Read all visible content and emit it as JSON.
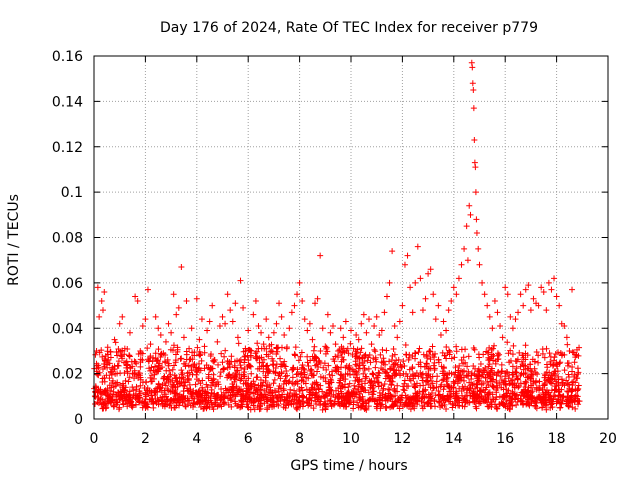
{
  "chart_data": {
    "type": "scatter",
    "title": "Day 176 of 2024, Rate Of TEC Index for receiver p779",
    "xlabel": "GPS time / hours",
    "ylabel": "ROTI / TECUs",
    "xlim": [
      0,
      20
    ],
    "ylim": [
      0,
      0.16
    ],
    "x_ticks": [
      0,
      2,
      4,
      6,
      8,
      10,
      12,
      14,
      16,
      18,
      20
    ],
    "x_tick_labels": [
      "0",
      "2",
      "4",
      "6",
      "8",
      "10",
      "12",
      "14",
      "16",
      "18",
      "20"
    ],
    "y_ticks": [
      0,
      0.02,
      0.04,
      0.06,
      0.08,
      0.1,
      0.12,
      0.14,
      0.16
    ],
    "y_tick_labels": [
      "0",
      "0.02",
      "0.04",
      "0.06",
      "0.08",
      "0.1",
      "0.12",
      "0.14",
      "0.16"
    ],
    "grid": true,
    "marker": "+",
    "series": [
      {
        "name": "ROTI",
        "color": "#ff0000",
        "points": [
          [
            0.05,
            0.012
          ],
          [
            0.1,
            0.03
          ],
          [
            0.15,
            0.058
          ],
          [
            0.2,
            0.045
          ],
          [
            0.3,
            0.052
          ],
          [
            0.4,
            0.056
          ],
          [
            0.35,
            0.048
          ],
          [
            0.5,
            0.025
          ],
          [
            0.6,
            0.018
          ],
          [
            0.7,
            0.022
          ],
          [
            0.8,
            0.035
          ],
          [
            0.9,
            0.028
          ],
          [
            1.0,
            0.042
          ],
          [
            1.1,
            0.045
          ],
          [
            1.2,
            0.031
          ],
          [
            1.3,
            0.024
          ],
          [
            1.4,
            0.038
          ],
          [
            1.5,
            0.02
          ],
          [
            1.6,
            0.054
          ],
          [
            1.7,
            0.052
          ],
          [
            1.8,
            0.03
          ],
          [
            1.9,
            0.041
          ],
          [
            2.0,
            0.044
          ],
          [
            2.1,
            0.057
          ],
          [
            2.2,
            0.033
          ],
          [
            2.3,
            0.027
          ],
          [
            2.4,
            0.045
          ],
          [
            2.5,
            0.04
          ],
          [
            2.6,
            0.037
          ],
          [
            2.7,
            0.029
          ],
          [
            2.8,
            0.034
          ],
          [
            2.9,
            0.042
          ],
          [
            3.0,
            0.038
          ],
          [
            3.1,
            0.055
          ],
          [
            3.2,
            0.046
          ],
          [
            3.3,
            0.049
          ],
          [
            3.4,
            0.067
          ],
          [
            3.5,
            0.036
          ],
          [
            3.6,
            0.052
          ],
          [
            3.7,
            0.031
          ],
          [
            3.8,
            0.04
          ],
          [
            3.9,
            0.028
          ],
          [
            4.0,
            0.053
          ],
          [
            4.1,
            0.035
          ],
          [
            4.2,
            0.044
          ],
          [
            4.3,
            0.032
          ],
          [
            4.4,
            0.039
          ],
          [
            4.5,
            0.043
          ],
          [
            4.6,
            0.05
          ],
          [
            4.7,
            0.026
          ],
          [
            4.8,
            0.034
          ],
          [
            4.9,
            0.041
          ],
          [
            5.0,
            0.045
          ],
          [
            5.1,
            0.042
          ],
          [
            5.2,
            0.055
          ],
          [
            5.3,
            0.048
          ],
          [
            5.4,
            0.043
          ],
          [
            5.5,
            0.051
          ],
          [
            5.6,
            0.036
          ],
          [
            5.7,
            0.061
          ],
          [
            5.8,
            0.049
          ],
          [
            5.9,
            0.03
          ],
          [
            6.0,
            0.039
          ],
          [
            6.1,
            0.028
          ],
          [
            6.2,
            0.046
          ],
          [
            6.3,
            0.052
          ],
          [
            6.4,
            0.041
          ],
          [
            6.5,
            0.038
          ],
          [
            6.6,
            0.033
          ],
          [
            6.7,
            0.044
          ],
          [
            6.8,
            0.036
          ],
          [
            6.9,
            0.03
          ],
          [
            7.0,
            0.038
          ],
          [
            7.1,
            0.042
          ],
          [
            7.2,
            0.051
          ],
          [
            7.3,
            0.045
          ],
          [
            7.4,
            0.037
          ],
          [
            7.5,
            0.031
          ],
          [
            7.6,
            0.04
          ],
          [
            7.7,
            0.047
          ],
          [
            7.8,
            0.05
          ],
          [
            7.9,
            0.055
          ],
          [
            8.0,
            0.06
          ],
          [
            8.1,
            0.052
          ],
          [
            8.2,
            0.044
          ],
          [
            8.3,
            0.039
          ],
          [
            8.4,
            0.042
          ],
          [
            8.5,
            0.035
          ],
          [
            8.6,
            0.051
          ],
          [
            8.7,
            0.053
          ],
          [
            8.8,
            0.072
          ],
          [
            8.9,
            0.04
          ],
          [
            9.0,
            0.032
          ],
          [
            9.1,
            0.046
          ],
          [
            9.2,
            0.038
          ],
          [
            9.3,
            0.041
          ],
          [
            9.4,
            0.033
          ],
          [
            9.5,
            0.03
          ],
          [
            9.6,
            0.04
          ],
          [
            9.7,
            0.036
          ],
          [
            9.8,
            0.043
          ],
          [
            9.9,
            0.029
          ],
          [
            10.0,
            0.039
          ],
          [
            10.1,
            0.031
          ],
          [
            10.2,
            0.037
          ],
          [
            10.3,
            0.035
          ],
          [
            10.4,
            0.042
          ],
          [
            10.5,
            0.046
          ],
          [
            10.6,
            0.038
          ],
          [
            10.7,
            0.044
          ],
          [
            10.8,
            0.033
          ],
          [
            10.9,
            0.041
          ],
          [
            11.0,
            0.045
          ],
          [
            11.1,
            0.037
          ],
          [
            11.2,
            0.039
          ],
          [
            11.3,
            0.047
          ],
          [
            11.4,
            0.054
          ],
          [
            11.5,
            0.06
          ],
          [
            11.6,
            0.074
          ],
          [
            11.7,
            0.041
          ],
          [
            11.8,
            0.036
          ],
          [
            11.9,
            0.043
          ],
          [
            12.0,
            0.05
          ],
          [
            12.1,
            0.068
          ],
          [
            12.2,
            0.072
          ],
          [
            12.3,
            0.058
          ],
          [
            12.4,
            0.047
          ],
          [
            12.5,
            0.06
          ],
          [
            12.6,
            0.076
          ],
          [
            12.7,
            0.062
          ],
          [
            12.8,
            0.048
          ],
          [
            12.9,
            0.053
          ],
          [
            13.0,
            0.064
          ],
          [
            13.1,
            0.066
          ],
          [
            13.2,
            0.055
          ],
          [
            13.3,
            0.044
          ],
          [
            13.4,
            0.05
          ],
          [
            13.5,
            0.037
          ],
          [
            13.6,
            0.043
          ],
          [
            13.7,
            0.039
          ],
          [
            13.8,
            0.048
          ],
          [
            13.9,
            0.052
          ],
          [
            14.0,
            0.058
          ],
          [
            14.1,
            0.055
          ],
          [
            14.2,
            0.062
          ],
          [
            14.3,
            0.068
          ],
          [
            14.4,
            0.075
          ],
          [
            14.5,
            0.085
          ],
          [
            14.55,
            0.07
          ],
          [
            14.6,
            0.094
          ],
          [
            14.65,
            0.09
          ],
          [
            14.7,
            0.157
          ],
          [
            14.72,
            0.155
          ],
          [
            14.74,
            0.148
          ],
          [
            14.76,
            0.145
          ],
          [
            14.78,
            0.137
          ],
          [
            14.8,
            0.123
          ],
          [
            14.82,
            0.113
          ],
          [
            14.84,
            0.111
          ],
          [
            14.86,
            0.1
          ],
          [
            14.88,
            0.088
          ],
          [
            14.9,
            0.082
          ],
          [
            14.95,
            0.075
          ],
          [
            15.0,
            0.068
          ],
          [
            15.1,
            0.06
          ],
          [
            15.2,
            0.055
          ],
          [
            15.3,
            0.05
          ],
          [
            15.4,
            0.045
          ],
          [
            15.5,
            0.04
          ],
          [
            15.6,
            0.052
          ],
          [
            15.7,
            0.047
          ],
          [
            15.8,
            0.041
          ],
          [
            15.9,
            0.036
          ],
          [
            16.0,
            0.058
          ],
          [
            16.1,
            0.055
          ],
          [
            16.2,
            0.045
          ],
          [
            16.3,
            0.04
          ],
          [
            16.4,
            0.044
          ],
          [
            16.5,
            0.047
          ],
          [
            16.6,
            0.055
          ],
          [
            16.7,
            0.05
          ],
          [
            16.8,
            0.057
          ],
          [
            16.9,
            0.059
          ],
          [
            17.0,
            0.048
          ],
          [
            17.1,
            0.053
          ],
          [
            17.2,
            0.051
          ],
          [
            17.3,
            0.05
          ],
          [
            17.4,
            0.058
          ],
          [
            17.5,
            0.056
          ],
          [
            17.6,
            0.048
          ],
          [
            17.7,
            0.06
          ],
          [
            17.8,
            0.057
          ],
          [
            17.9,
            0.062
          ],
          [
            18.0,
            0.054
          ],
          [
            18.1,
            0.05
          ],
          [
            18.2,
            0.042
          ],
          [
            18.3,
            0.041
          ],
          [
            18.4,
            0.036
          ],
          [
            18.5,
            0.03
          ],
          [
            18.6,
            0.057
          ],
          [
            18.7,
            0.025
          ],
          [
            18.8,
            0.018
          ]
        ],
        "band": {
          "x_range": [
            0,
            18.9
          ],
          "baseline_low": 0.004,
          "baseline_high": 0.028,
          "count": 2600
        }
      }
    ]
  }
}
